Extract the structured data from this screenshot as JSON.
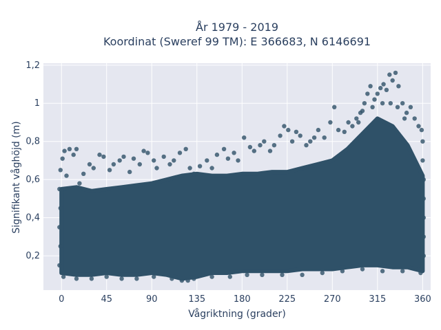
{
  "chart_data": {
    "type": "scatter",
    "title_lines": [
      "År 1979 - 2019",
      "Koordinat (Sweref 99 TM): E 366683, N 6146691"
    ],
    "xlabel": "Vågriktning (grader)",
    "ylabel": "Signifikant våghöjd (m)",
    "xlim": [
      -18,
      368
    ],
    "ylim": [
      0.02,
      1.21
    ],
    "x_ticks": [
      0,
      45,
      90,
      135,
      180,
      225,
      270,
      315,
      360
    ],
    "x_tick_labels": [
      "0",
      "45",
      "90",
      "135",
      "180",
      "225",
      "270",
      "315",
      "360"
    ],
    "y_ticks": [
      0.2,
      0.4,
      0.6,
      0.8,
      1.0,
      1.2
    ],
    "y_tick_labels": [
      "0,2",
      "0,4",
      "0,6",
      "0,8",
      "1",
      "1,2"
    ],
    "grid": true,
    "marker_color": "#2f5168",
    "background_color": "#e5e7f0",
    "series": [
      {
        "points": [
          [
            1,
            0.71
          ],
          [
            3,
            0.75
          ],
          [
            8,
            0.76
          ],
          [
            12,
            0.73
          ],
          [
            15,
            0.76
          ],
          [
            5,
            0.62
          ],
          [
            18,
            0.58
          ],
          [
            22,
            0.63
          ],
          [
            28,
            0.68
          ],
          [
            32,
            0.66
          ],
          [
            38,
            0.73
          ],
          [
            42,
            0.72
          ],
          [
            48,
            0.65
          ],
          [
            52,
            0.68
          ],
          [
            58,
            0.7
          ],
          [
            62,
            0.72
          ],
          [
            68,
            0.64
          ],
          [
            72,
            0.71
          ],
          [
            78,
            0.68
          ],
          [
            82,
            0.75
          ],
          [
            86,
            0.74
          ],
          [
            92,
            0.7
          ],
          [
            95,
            0.66
          ],
          [
            102,
            0.72
          ],
          [
            108,
            0.68
          ],
          [
            112,
            0.7
          ],
          [
            118,
            0.74
          ],
          [
            124,
            0.76
          ],
          [
            128,
            0.66
          ],
          [
            132,
            0.63
          ],
          [
            138,
            0.67
          ],
          [
            145,
            0.7
          ],
          [
            150,
            0.66
          ],
          [
            155,
            0.73
          ],
          [
            162,
            0.76
          ],
          [
            166,
            0.71
          ],
          [
            172,
            0.74
          ],
          [
            176,
            0.7
          ],
          [
            182,
            0.82
          ],
          [
            188,
            0.77
          ],
          [
            192,
            0.75
          ],
          [
            198,
            0.78
          ],
          [
            202,
            0.8
          ],
          [
            208,
            0.75
          ],
          [
            212,
            0.78
          ],
          [
            218,
            0.83
          ],
          [
            222,
            0.88
          ],
          [
            226,
            0.86
          ],
          [
            230,
            0.8
          ],
          [
            234,
            0.85
          ],
          [
            238,
            0.83
          ],
          [
            244,
            0.78
          ],
          [
            248,
            0.8
          ],
          [
            252,
            0.82
          ],
          [
            256,
            0.86
          ],
          [
            262,
            0.82
          ],
          [
            268,
            0.9
          ],
          [
            272,
            0.98
          ],
          [
            276,
            0.86
          ],
          [
            282,
            0.85
          ],
          [
            286,
            0.9
          ],
          [
            290,
            0.88
          ],
          [
            294,
            0.92
          ],
          [
            298,
            0.95
          ],
          [
            302,
            1.0
          ],
          [
            305,
            1.05
          ],
          [
            308,
            1.09
          ],
          [
            312,
            1.02
          ],
          [
            315,
            1.05
          ],
          [
            318,
            1.08
          ],
          [
            321,
            1.1
          ],
          [
            324,
            1.07
          ],
          [
            327,
            1.15
          ],
          [
            330,
            1.12
          ],
          [
            333,
            1.16
          ],
          [
            336,
            1.09
          ],
          [
            340,
            1.0
          ],
          [
            344,
            0.95
          ],
          [
            348,
            0.98
          ],
          [
            352,
            0.92
          ],
          [
            356,
            0.88
          ],
          [
            359,
            0.86
          ],
          [
            300,
            0.96
          ],
          [
            310,
            0.98
          ],
          [
            320,
            1.0
          ],
          [
            328,
            1.0
          ],
          [
            335,
            0.98
          ],
          [
            342,
            0.92
          ],
          [
            296,
            0.9
          ],
          [
            2,
            0.09
          ],
          [
            15,
            0.08
          ],
          [
            30,
            0.08
          ],
          [
            45,
            0.09
          ],
          [
            60,
            0.08
          ],
          [
            75,
            0.08
          ],
          [
            92,
            0.09
          ],
          [
            110,
            0.08
          ],
          [
            120,
            0.07
          ],
          [
            126,
            0.07
          ],
          [
            132,
            0.08
          ],
          [
            150,
            0.09
          ],
          [
            168,
            0.09
          ],
          [
            185,
            0.1
          ],
          [
            200,
            0.1
          ],
          [
            220,
            0.1
          ],
          [
            240,
            0.1
          ],
          [
            260,
            0.11
          ],
          [
            280,
            0.12
          ],
          [
            300,
            0.13
          ],
          [
            320,
            0.12
          ],
          [
            340,
            0.12
          ],
          [
            358,
            0.11
          ],
          [
            -1,
            0.65
          ],
          [
            -2,
            0.55
          ],
          [
            -1,
            0.45
          ],
          [
            -2,
            0.35
          ],
          [
            -1,
            0.25
          ],
          [
            -2,
            0.15
          ],
          [
            361,
            0.2
          ],
          [
            361,
            0.3
          ],
          [
            361,
            0.4
          ],
          [
            361,
            0.5
          ],
          [
            361,
            0.6
          ],
          [
            360,
            0.7
          ],
          [
            360,
            0.8
          ]
        ]
      }
    ],
    "density_envelope": {
      "x": [
        0,
        15,
        30,
        45,
        60,
        75,
        90,
        105,
        120,
        135,
        150,
        165,
        180,
        195,
        210,
        225,
        240,
        255,
        270,
        285,
        300,
        315,
        330,
        345,
        360
      ],
      "y_low": [
        0.11,
        0.1,
        0.1,
        0.11,
        0.1,
        0.1,
        0.11,
        0.1,
        0.08,
        0.09,
        0.11,
        0.11,
        0.12,
        0.12,
        0.12,
        0.12,
        0.13,
        0.13,
        0.13,
        0.14,
        0.15,
        0.15,
        0.14,
        0.14,
        0.12
      ],
      "y_high": [
        0.55,
        0.56,
        0.54,
        0.55,
        0.56,
        0.57,
        0.58,
        0.6,
        0.62,
        0.63,
        0.62,
        0.62,
        0.63,
        0.63,
        0.64,
        0.64,
        0.66,
        0.68,
        0.7,
        0.76,
        0.84,
        0.92,
        0.88,
        0.78,
        0.62
      ]
    }
  }
}
